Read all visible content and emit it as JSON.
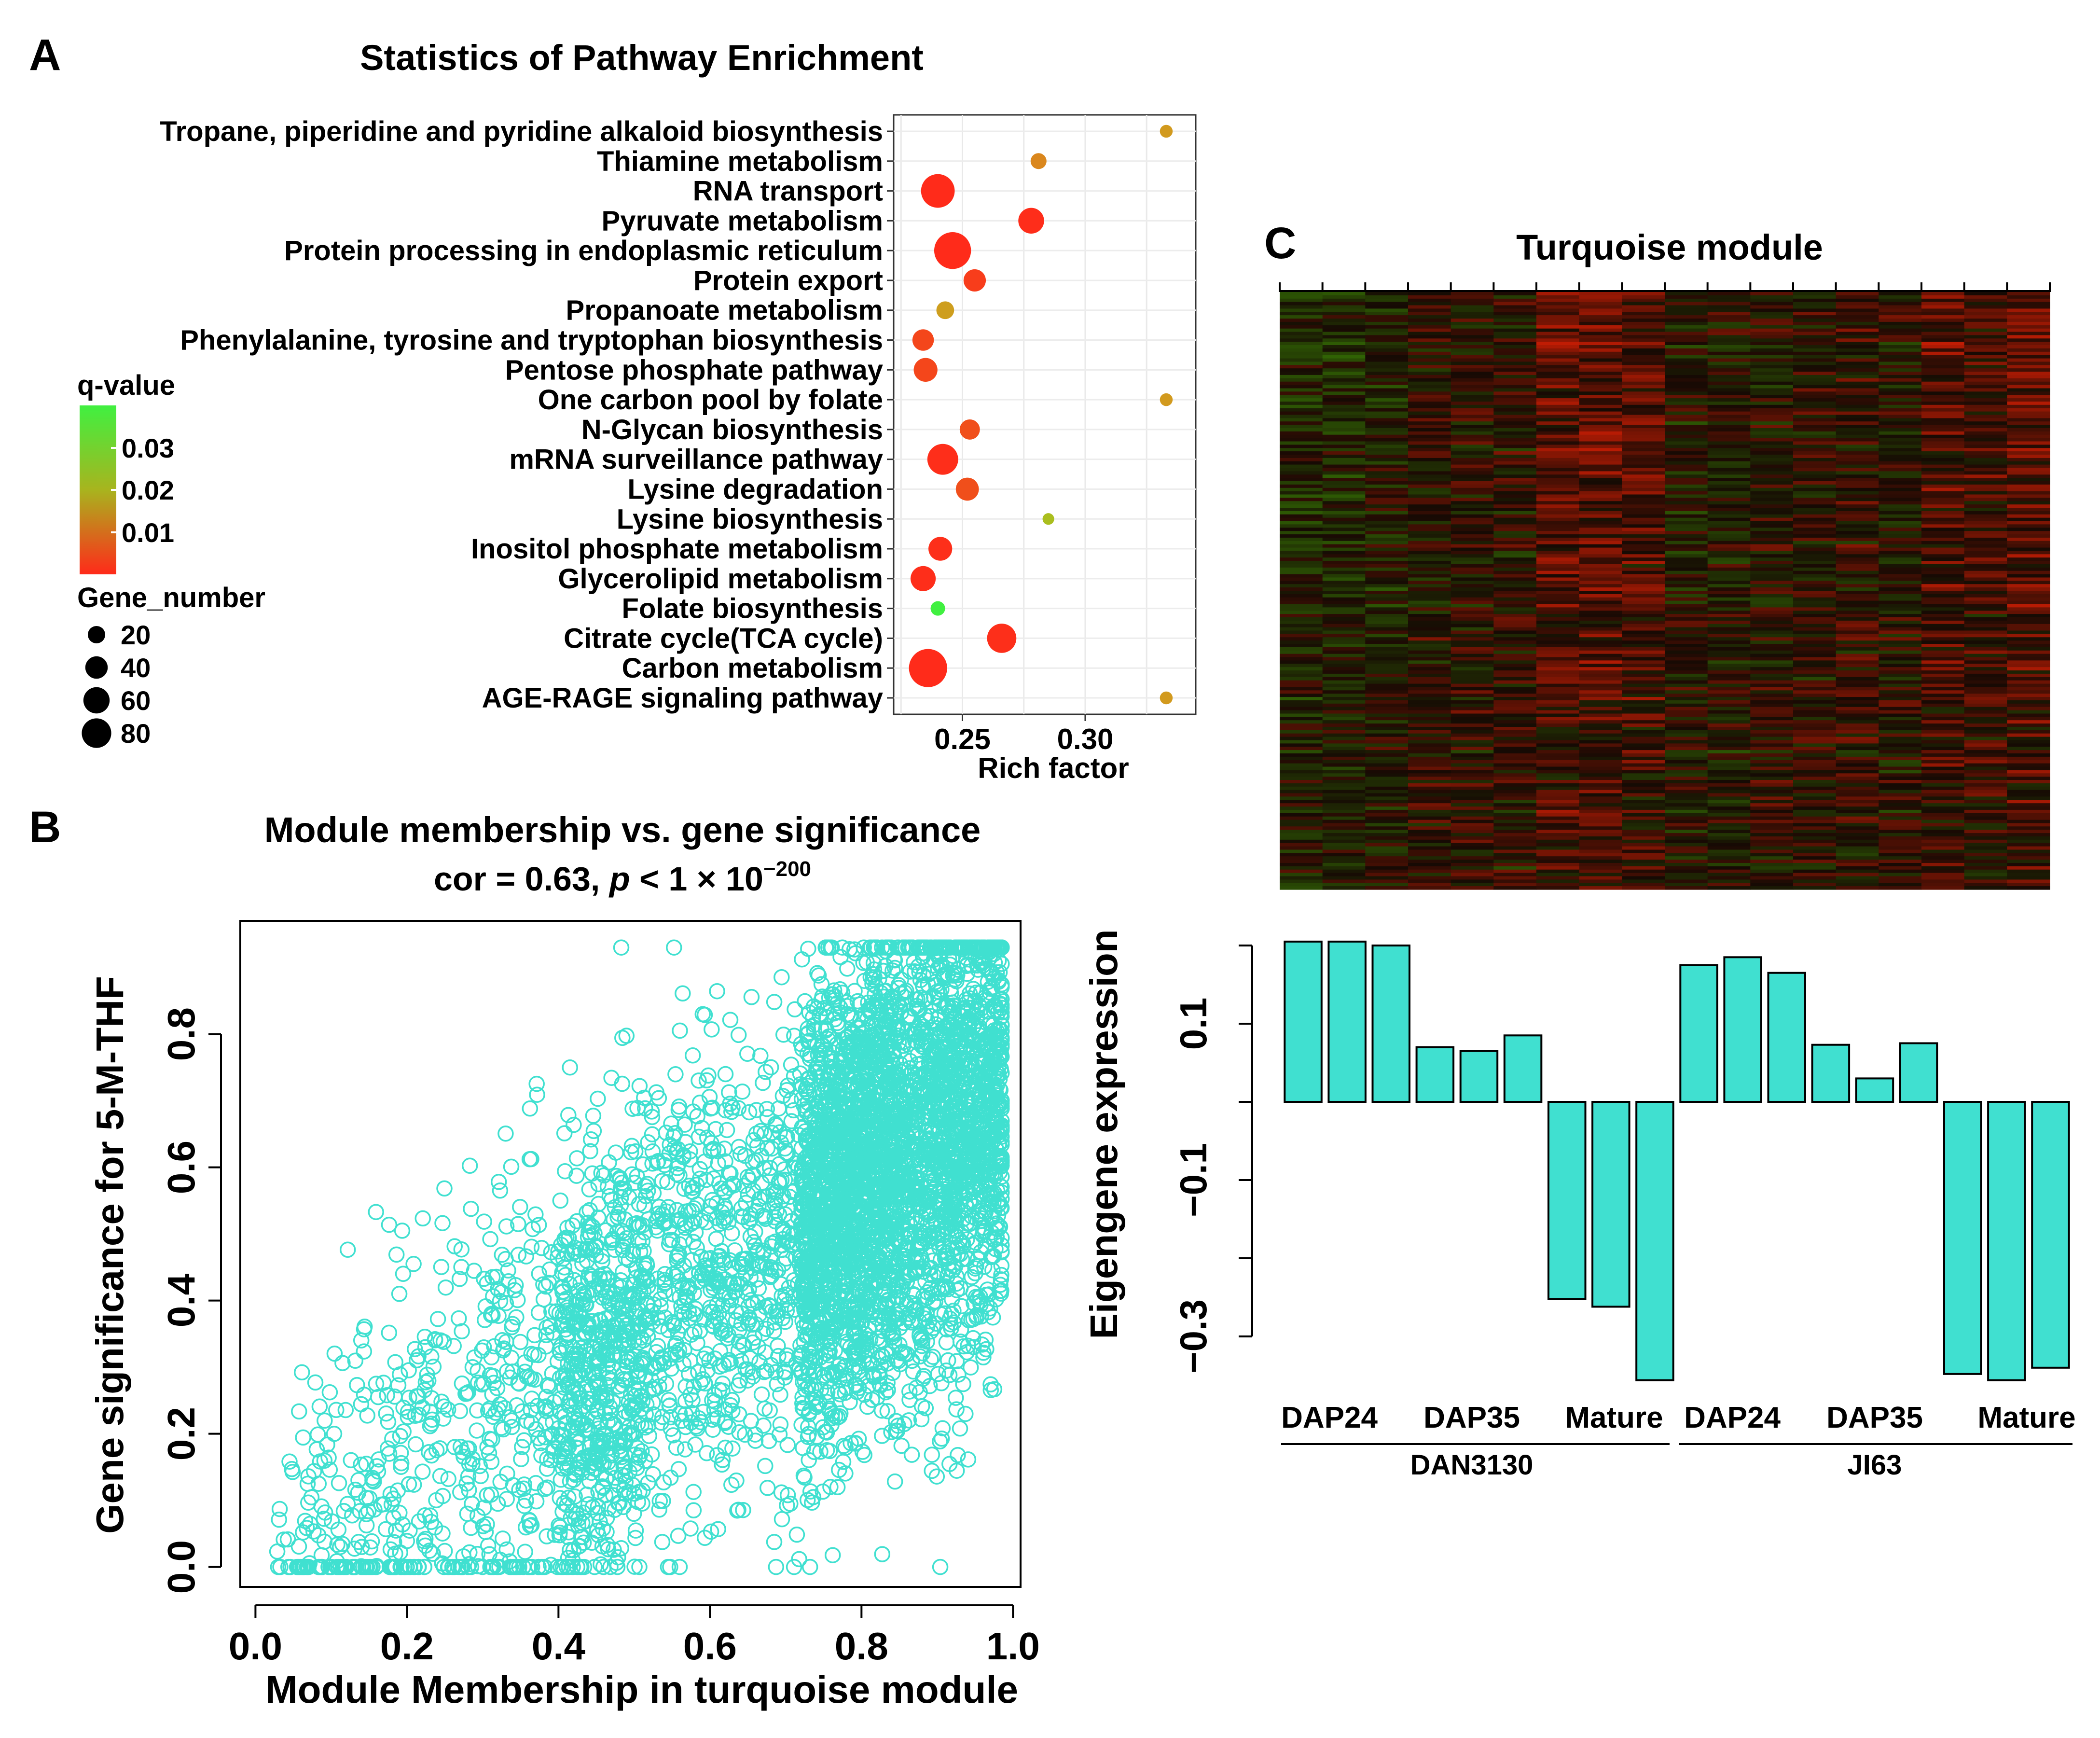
{
  "panel_labels": {
    "a": "A",
    "b": "B",
    "c": "C"
  },
  "colors": {
    "turquoise": "#40e0d0",
    "low_q": "#ff2a1a",
    "mid_q": "#d29a1e",
    "high_q": "#40f040",
    "grid": "#ebebeb"
  },
  "chart_data": [
    {
      "id": "A",
      "type": "scatter",
      "title": "Statistics of Pathway Enrichment",
      "xlabel": "Rich factor",
      "ylabel": "",
      "xlim": [
        0.222,
        0.345
      ],
      "xticks": [
        0.25,
        0.3
      ],
      "xtick_labels": [
        "0.25",
        "0.30"
      ],
      "grid": true,
      "color_legend": {
        "title": "q-value",
        "ticks": [
          "0.03",
          "0.02",
          "0.01"
        ]
      },
      "size_legend": {
        "title": "Gene_number",
        "values": [
          20,
          40,
          60,
          80
        ],
        "labels": [
          "20",
          "40",
          "60",
          "80"
        ]
      },
      "categories": [
        "Tropane, piperidine and pyridine alkaloid biosynthesis",
        "Thiamine metabolism",
        "RNA transport",
        "Pyruvate metabolism",
        "Protein processing in endoplasmic reticulum",
        "Protein export",
        "Propanoate metabolism",
        "Phenylalanine, tyrosine and tryptophan biosynthesis",
        "Pentose phosphate pathway",
        "One carbon pool by folate",
        "N-Glycan biosynthesis",
        "mRNA surveillance pathway",
        "Lysine degradation",
        "Lysine biosynthesis",
        "Inositol phosphate metabolism",
        "Glycerolipid metabolism",
        "Folate biosynthesis",
        "Citrate cycle(TCA cycle)",
        "Carbon metabolism",
        "AGE-RAGE signaling pathway"
      ],
      "rich_factor": [
        0.333,
        0.281,
        0.24,
        0.278,
        0.246,
        0.255,
        0.243,
        0.234,
        0.235,
        0.333,
        0.253,
        0.242,
        0.252,
        0.285,
        0.241,
        0.234,
        0.24,
        0.266,
        0.236,
        0.333
      ],
      "gene_number": [
        3,
        7,
        60,
        30,
        75,
        20,
        10,
        18,
        24,
        3,
        15,
        48,
        22,
        2,
        24,
        28,
        5,
        42,
        82,
        3
      ],
      "q_value": [
        0.012,
        0.01,
        0.0001,
        0.0003,
        0.0001,
        0.002,
        0.013,
        0.003,
        0.003,
        0.012,
        0.004,
        0.0004,
        0.004,
        0.022,
        0.0005,
        0.0004,
        0.035,
        0.0005,
        0.0001,
        0.012
      ]
    },
    {
      "id": "B",
      "type": "scatter",
      "title": "Module membership vs. gene significance",
      "subtitle_prefix": "cor = 0.63, ",
      "subtitle_p": "p",
      "subtitle_mid": " < 1 × 10",
      "subtitle_exp": "−200",
      "xlabel": "Module Membership in turquoise module",
      "ylabel": "Gene significance for 5-M-THF",
      "xlim": [
        -0.02,
        1.01
      ],
      "ylim": [
        -0.03,
        0.97
      ],
      "xticks": [
        "0.0",
        "0.2",
        "0.4",
        "0.6",
        "0.8",
        "1.0"
      ],
      "yticks": [
        "0.0",
        "0.2",
        "0.4",
        "0.6",
        "0.8"
      ],
      "n_points_approx": 9000,
      "points_generator": "mm ~ dense near 0.75-1.0, sparse tail to 0.0; gs ~ 0.63 correlation with mm"
    },
    {
      "id": "C",
      "type": "heatmap",
      "title": "Turquoise module",
      "columns": 18,
      "column_groups": [
        {
          "genotype": "DAN3130",
          "stages": [
            "DAP24",
            "DAP35",
            "Mature"
          ]
        },
        {
          "genotype": "JI63",
          "stages": [
            "DAP24",
            "DAP35",
            "Mature"
          ]
        }
      ],
      "column_bias": [
        -0.25,
        -0.3,
        -0.2,
        0.05,
        0.1,
        0.05,
        0.55,
        0.65,
        0.5,
        -0.1,
        -0.05,
        0.05,
        0.1,
        0.15,
        0.05,
        0.5,
        0.3,
        0.6
      ],
      "colors": {
        "low": "#22cc22",
        "mid": "#000000",
        "high": "#dd2222"
      }
    },
    {
      "id": "C-bars",
      "type": "bar",
      "ylabel": "Eigengene expression",
      "ylim": [
        -0.37,
        0.2
      ],
      "yticks": [
        0.1,
        -0.1,
        -0.3
      ],
      "ytick_labels": [
        "0.1",
        "−0.1",
        "−0.3"
      ],
      "values": [
        0.205,
        0.205,
        0.2,
        0.07,
        0.065,
        0.085,
        -0.252,
        -0.262,
        -0.356,
        0.175,
        0.185,
        0.165,
        0.073,
        0.03,
        0.075,
        -0.348,
        -0.356,
        -0.34
      ],
      "group_labels": [
        "DAP24",
        "DAP35",
        "Mature",
        "DAP24",
        "DAP35",
        "Mature"
      ],
      "genotypes": [
        "DAN3130",
        "JI63"
      ]
    }
  ]
}
